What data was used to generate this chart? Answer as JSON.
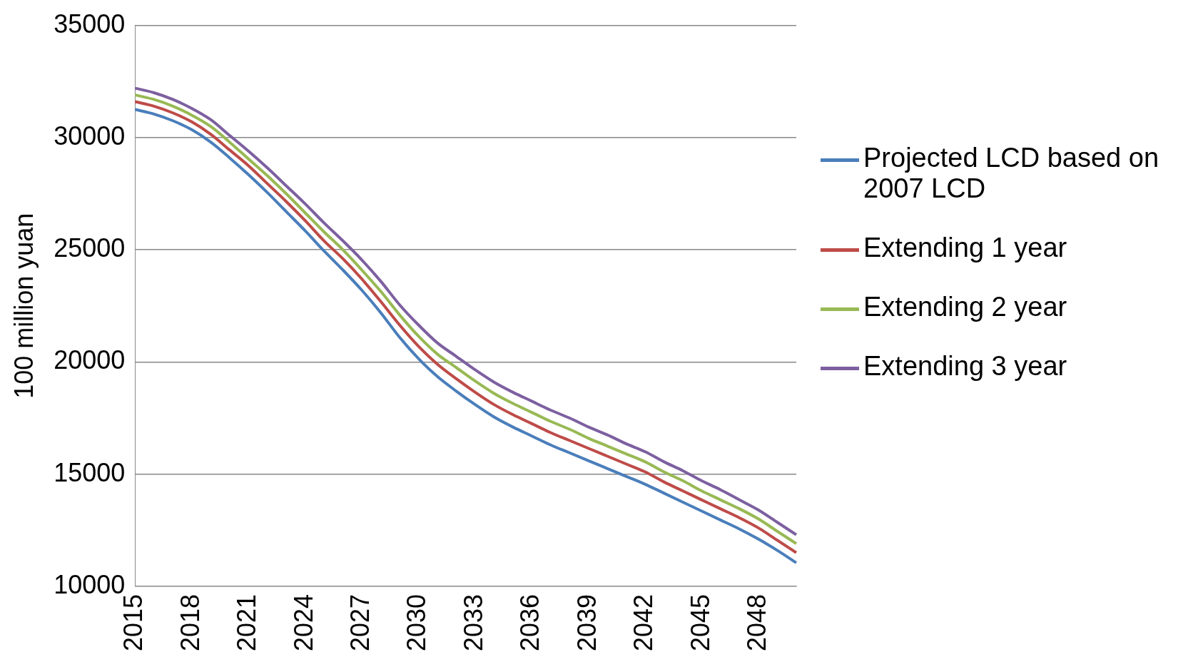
{
  "chart_data": {
    "type": "line",
    "ylabel": "100 million yuan",
    "categories": [
      "2015",
      null,
      null,
      "2018",
      null,
      null,
      "2021",
      null,
      null,
      "2024",
      null,
      null,
      "2027",
      null,
      null,
      "2030",
      null,
      null,
      "2033",
      null,
      null,
      "2036",
      null,
      null,
      "2039",
      null,
      null,
      "2042",
      null,
      null,
      "2045",
      null,
      null,
      "2048",
      null,
      null
    ],
    "ylim": [
      10000,
      35000
    ],
    "yticks": [
      10000,
      15000,
      20000,
      25000,
      30000,
      35000
    ],
    "grid": "y",
    "legend": "right",
    "marker": "none",
    "line_style": "solid",
    "series": [
      {
        "name": "Projected LCD based on 2007 LCD",
        "color": "#4a7ebb",
        "values": [
          31250,
          31050,
          30750,
          30350,
          29800,
          29100,
          28350,
          27550,
          26700,
          25850,
          24950,
          24100,
          23200,
          22200,
          21100,
          20150,
          19350,
          18700,
          18100,
          17550,
          17100,
          16700,
          16300,
          15950,
          15600,
          15250,
          14900,
          14550,
          14150,
          13750,
          13350,
          12950,
          12550,
          12100,
          11600,
          11050
        ]
      },
      {
        "name": "Extending 1 year",
        "color": "#be4b48",
        "values": [
          31600,
          31400,
          31100,
          30700,
          30150,
          29450,
          28750,
          27950,
          27150,
          26300,
          25400,
          24600,
          23700,
          22700,
          21650,
          20700,
          19900,
          19250,
          18650,
          18100,
          17650,
          17250,
          16850,
          16500,
          16150,
          15800,
          15450,
          15100,
          14650,
          14250,
          13850,
          13450,
          13050,
          12600,
          12050,
          11500
        ]
      },
      {
        "name": "Extending 2 year",
        "color": "#98b954",
        "values": [
          31900,
          31700,
          31400,
          31000,
          30500,
          29800,
          29050,
          28300,
          27500,
          26650,
          25800,
          25000,
          24100,
          23150,
          22100,
          21150,
          20350,
          19750,
          19150,
          18600,
          18150,
          17750,
          17350,
          17000,
          16600,
          16250,
          15900,
          15550,
          15100,
          14700,
          14250,
          13850,
          13450,
          13000,
          12450,
          11900
        ]
      },
      {
        "name": "Extending 3 year",
        "color": "#7d60a0",
        "values": [
          32200,
          32000,
          31700,
          31300,
          30800,
          30100,
          29400,
          28650,
          27850,
          27050,
          26200,
          25400,
          24550,
          23600,
          22550,
          21650,
          20850,
          20250,
          19650,
          19100,
          18650,
          18250,
          17850,
          17500,
          17100,
          16750,
          16350,
          16000,
          15550,
          15150,
          14700,
          14300,
          13850,
          13400,
          12850,
          12300
        ]
      }
    ]
  }
}
